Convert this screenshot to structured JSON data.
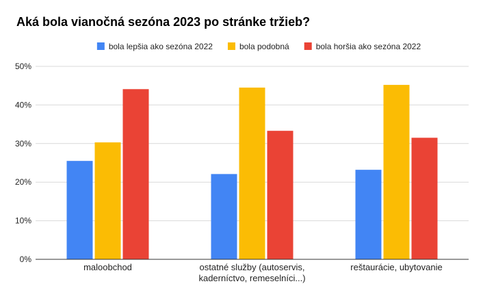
{
  "chart_data": {
    "type": "bar",
    "title": "Aká bola vianočná sezóna 2023 po stránke tržieb?",
    "categories": [
      [
        "maloobchod"
      ],
      [
        "ostatné služby (autoservis,",
        "kaderníctvo, remeselníci...)"
      ],
      [
        "reštaurácie, ubytovanie"
      ]
    ],
    "series": [
      {
        "name": "bola lepšia ako sezóna 2022",
        "color": "#4285F4",
        "values": [
          25.5,
          22.1,
          23.2
        ]
      },
      {
        "name": "bola podobná",
        "color": "#FBBC04",
        "values": [
          30.3,
          44.5,
          45.2
        ]
      },
      {
        "name": "bola horšia ako sezóna 2022",
        "color": "#EA4335",
        "values": [
          44.1,
          33.3,
          31.5
        ]
      }
    ],
    "ylim": [
      0,
      50
    ],
    "yticks": [
      0,
      10,
      20,
      30,
      40,
      50
    ],
    "ytick_labels": [
      "0%",
      "10%",
      "20%",
      "30%",
      "40%",
      "50%"
    ],
    "xlabel": "",
    "ylabel": "",
    "grid": true,
    "legend_position": "top-center"
  }
}
